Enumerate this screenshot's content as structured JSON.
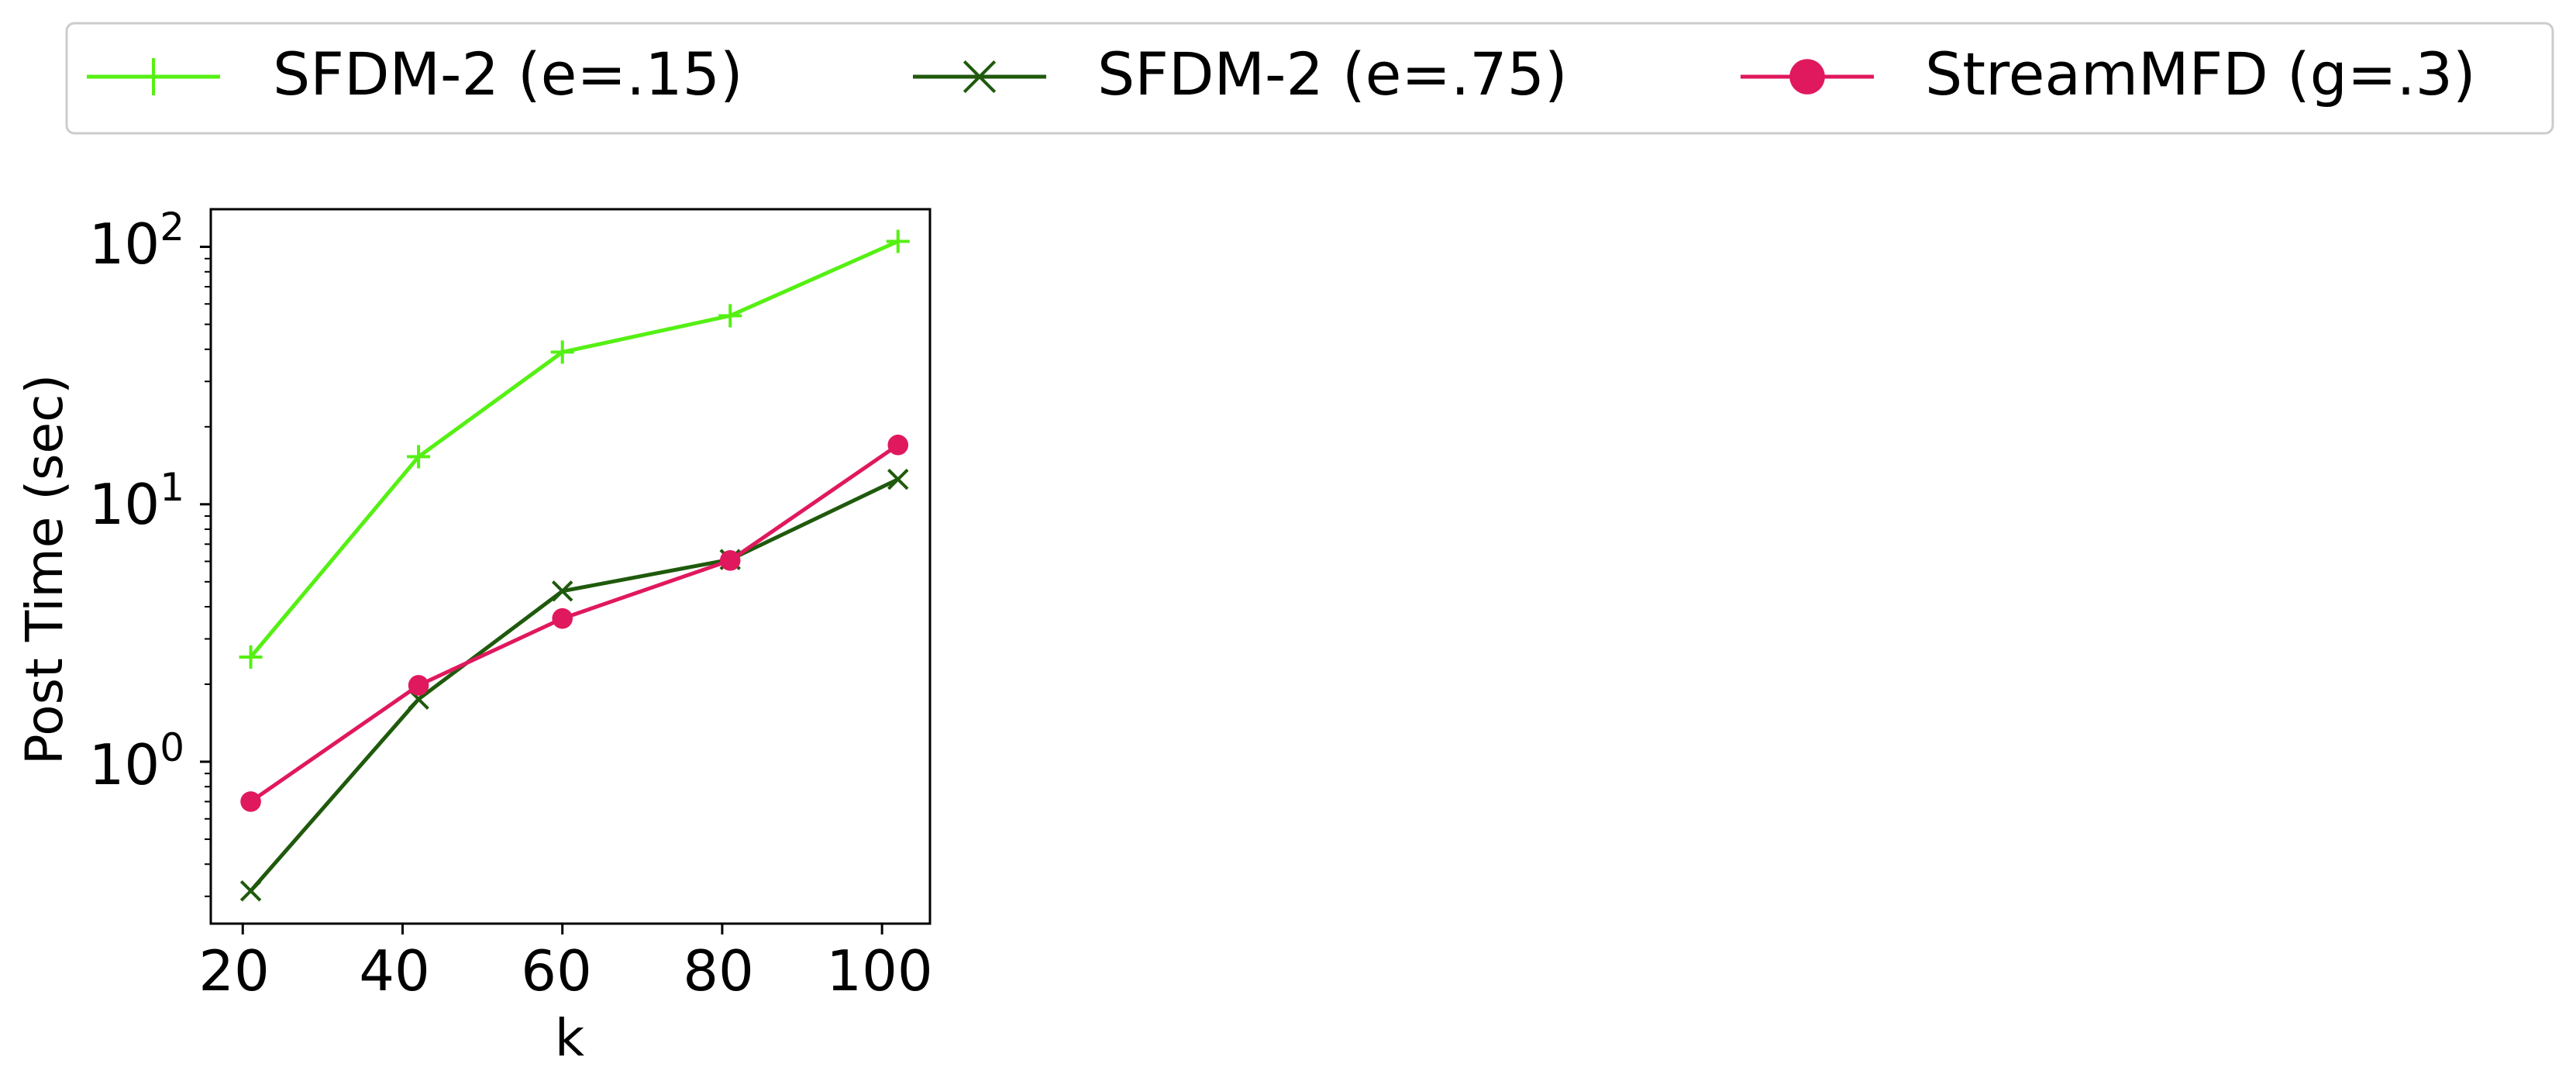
{
  "chart_data": {
    "type": "line",
    "title": "",
    "xlabel": "k",
    "ylabel": "Post Time (sec)",
    "y_scale": "log",
    "xlim": [
      16,
      106
    ],
    "ylim": [
      0.235,
      140
    ],
    "x_ticks": [
      20,
      40,
      60,
      80,
      100
    ],
    "x_tick_labels": [
      "20",
      "40",
      "60",
      "80",
      "100"
    ],
    "y_ticks": [
      1,
      10,
      100
    ],
    "y_tick_labels": [
      {
        "base": "10",
        "exp": "0"
      },
      {
        "base": "10",
        "exp": "1"
      },
      {
        "base": "10",
        "exp": "2"
      }
    ],
    "grid": false,
    "legend_position": "top (above plot, single row)",
    "x": [
      21,
      42,
      60,
      81,
      102
    ],
    "series": [
      {
        "name": "SFDM-2 (e=.15)",
        "color": "#55f013",
        "marker": "plus",
        "values": [
          2.55,
          15.3,
          39.0,
          54.0,
          105.0
        ]
      },
      {
        "name": "SFDM-2 (e=.75)",
        "color": "#1f5a0c",
        "marker": "x",
        "values": [
          0.315,
          1.75,
          4.6,
          6.1,
          12.5
        ]
      },
      {
        "name": "StreamMFD (g=.3)",
        "color": "#e0185e",
        "marker": "circle",
        "values": [
          0.7,
          1.98,
          3.6,
          6.05,
          17.0
        ]
      }
    ]
  }
}
